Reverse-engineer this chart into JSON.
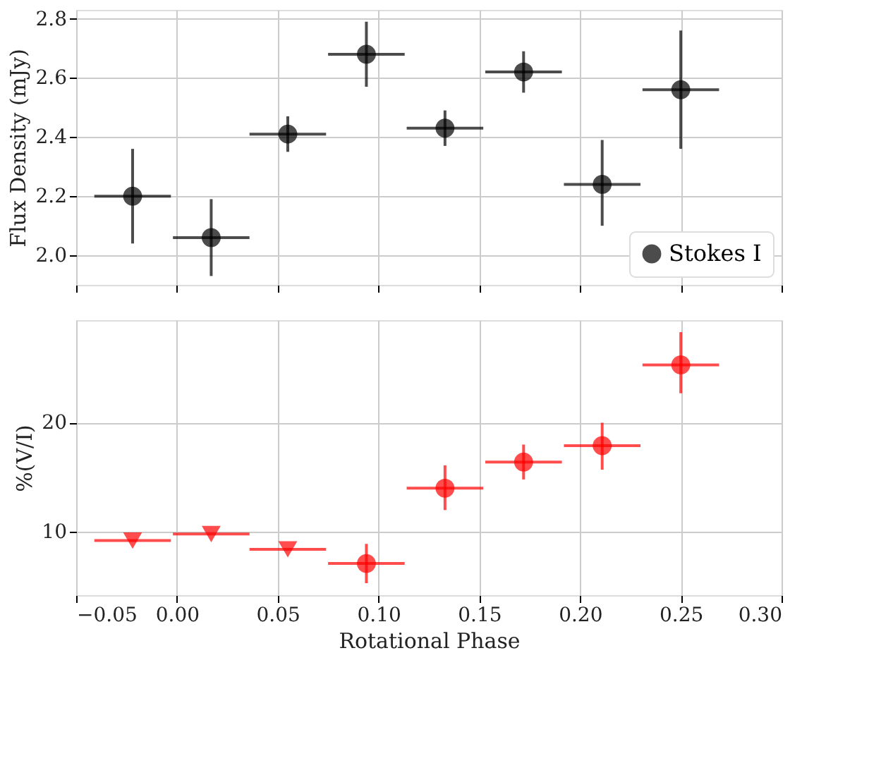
{
  "chart_data": [
    {
      "type": "scatter",
      "ylabel": "Flux Density (mJy)",
      "x": [
        -0.022,
        0.017,
        0.055,
        0.094,
        0.133,
        0.172,
        0.211,
        0.25
      ],
      "series": [
        {
          "name": "Stokes I",
          "color": "#000000",
          "marker": "circle",
          "values": [
            2.2,
            2.06,
            2.41,
            2.68,
            2.43,
            2.62,
            2.24,
            2.56
          ],
          "errors": [
            [
              2.04,
              2.36
            ],
            [
              1.93,
              2.19
            ],
            [
              2.35,
              2.47
            ],
            [
              2.57,
              2.79
            ],
            [
              2.37,
              2.49
            ],
            [
              2.55,
              2.69
            ],
            [
              2.1,
              2.39
            ],
            [
              2.36,
              2.76
            ]
          ],
          "xerrors": [
            0.019,
            0.019,
            0.019,
            0.019,
            0.019,
            0.019,
            0.019,
            0.019
          ]
        }
      ],
      "xlim": [
        -0.05,
        0.3
      ],
      "xticks": [
        {
          "value": -0.05,
          "label": null
        },
        {
          "value": 0.0,
          "label": null
        },
        {
          "value": 0.05,
          "label": null
        },
        {
          "value": 0.1,
          "label": null
        },
        {
          "value": 0.15,
          "label": null
        },
        {
          "value": 0.2,
          "label": null
        },
        {
          "value": 0.25,
          "label": null
        },
        {
          "value": 0.3,
          "label": null
        }
      ],
      "ylim": [
        1.9,
        2.83
      ],
      "yticks": [
        {
          "value": 2.0,
          "label": "2.0"
        },
        {
          "value": 2.2,
          "label": "2.2"
        },
        {
          "value": 2.4,
          "label": "2.4"
        },
        {
          "value": 2.6,
          "label": "2.6"
        },
        {
          "value": 2.8,
          "label": "2.8"
        }
      ],
      "tick_labels": "y",
      "grid": true,
      "legend": "bottom right"
    },
    {
      "type": "scatter",
      "xlabel": "Rotational Phase",
      "ylabel": "%(V/I)",
      "series": [
        {
          "color": "#ff0000",
          "marker": "triangle",
          "x": [
            -0.022,
            0.017,
            0.055
          ],
          "values": [
            9.2,
            9.8,
            8.4
          ],
          "xerrors": [
            0.019,
            0.019,
            0.019
          ]
        },
        {
          "color": "#ff0000",
          "marker": "circle",
          "x": [
            0.094,
            0.133,
            0.172,
            0.211,
            0.25
          ],
          "values": [
            7.1,
            14.0,
            16.4,
            17.9,
            25.3
          ],
          "errors": [
            [
              5.3,
              8.9
            ],
            [
              12.0,
              16.1
            ],
            [
              14.8,
              18.0
            ],
            [
              15.7,
              20.0
            ],
            [
              22.7,
              28.3
            ]
          ],
          "xerrors": [
            0.019,
            0.019,
            0.019,
            0.019,
            0.019
          ]
        }
      ],
      "xlim": [
        -0.05,
        0.3
      ],
      "xticks": [
        {
          "value": -0.05,
          "label": "−0.05"
        },
        {
          "value": 0.0,
          "label": "0.00"
        },
        {
          "value": 0.05,
          "label": "0.05"
        },
        {
          "value": 0.1,
          "label": "0.10"
        },
        {
          "value": 0.15,
          "label": "0.15"
        },
        {
          "value": 0.2,
          "label": "0.20"
        },
        {
          "value": 0.25,
          "label": "0.25"
        },
        {
          "value": 0.3,
          "label": "0.30"
        }
      ],
      "ylim": [
        4.2,
        29.4
      ],
      "yticks": [
        10,
        20
      ],
      "grid": true
    }
  ]
}
